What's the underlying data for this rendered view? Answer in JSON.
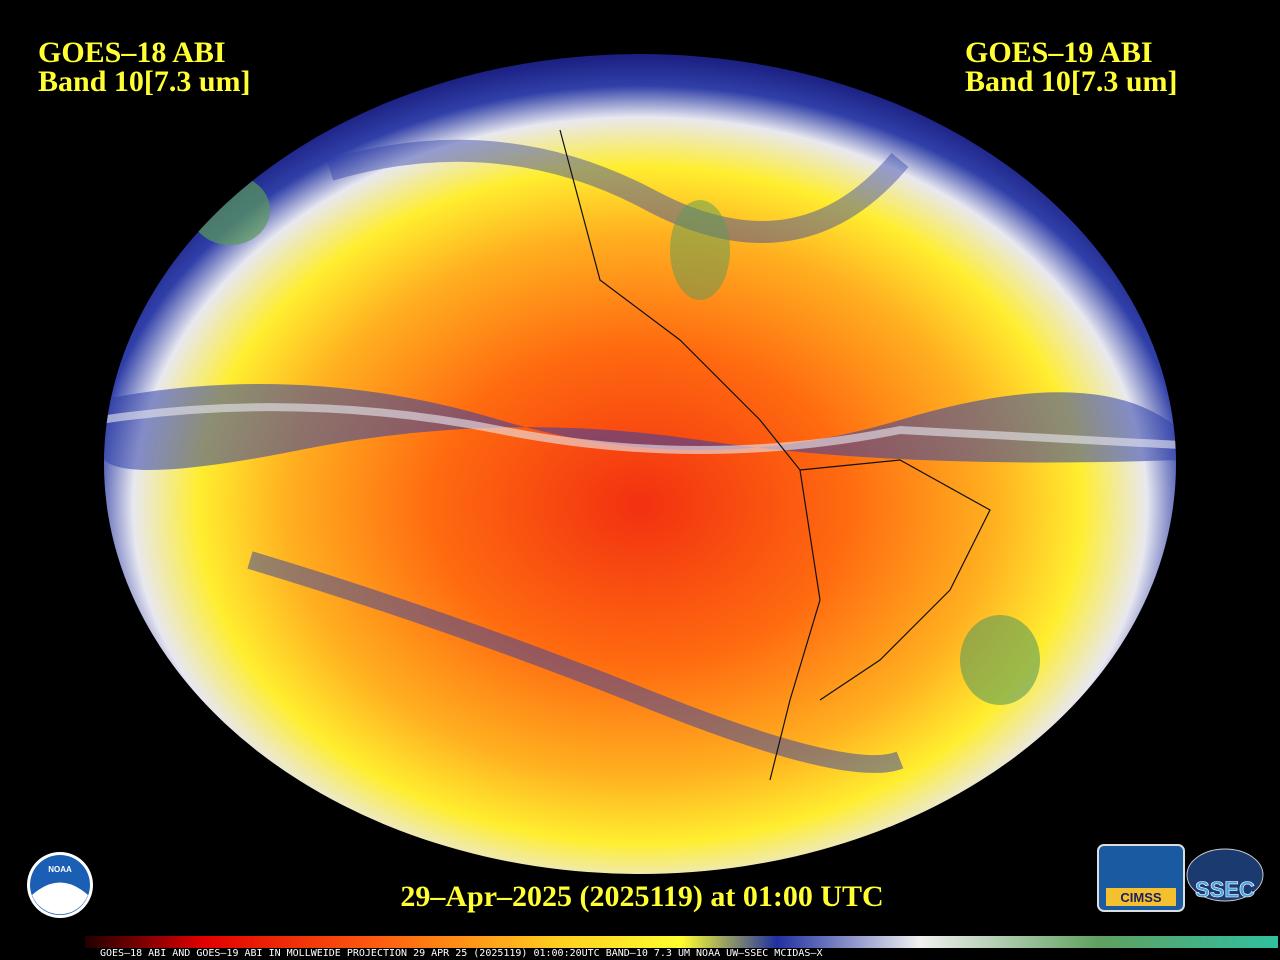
{
  "header": {
    "left": {
      "line1": "GOES–18 ABI",
      "line2": "Band 10[7.3 um]"
    },
    "right": {
      "line1": "GOES–19 ABI",
      "line2": "Band 10[7.3 um]"
    }
  },
  "timestamp": "29–Apr–2025 (2025119) at 01:00 UTC",
  "caption": "GOES–18 ABI AND GOES–19 ABI IN MOLLWEIDE PROJECTION 29 APR 25 (2025119) 01:00:20UTC BAND–10 7.3 UM NOAA UW–SSEC MCIDAS–X",
  "logos": {
    "noaa": "NOAA",
    "cimss": "CIMSS",
    "ssec": "SSEC"
  }
}
